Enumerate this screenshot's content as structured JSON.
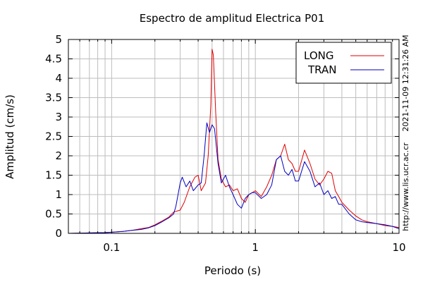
{
  "chart_data": {
    "type": "line",
    "title": "Espectro de amplitud Electrica P01",
    "xlabel": "Periodo (s)",
    "ylabel": "Amplitud (cm/s)",
    "x_scale": "log",
    "xlim": [
      0.05,
      10
    ],
    "ylim": [
      0,
      5
    ],
    "grid": true,
    "legend_position": "top-right",
    "x_tick_labels": [
      {
        "value": 0.1,
        "label": "0.1"
      },
      {
        "value": 1,
        "label": "1"
      },
      {
        "value": 10,
        "label": "10"
      }
    ],
    "y_ticks": [
      0,
      0.5,
      1,
      1.5,
      2,
      2.5,
      3,
      3.5,
      4,
      4.5,
      5
    ],
    "y_tick_labels": [
      "0",
      "0.5",
      "1",
      "1.5",
      "2",
      "2.5",
      "3",
      "3.5",
      "4",
      "4.5",
      "5"
    ],
    "timestamp": "2021-11-09 12:31:26 AM",
    "source_url": "http://www.lis.ucr.ac.cr",
    "series": [
      {
        "name": "LONG",
        "color": "#e00000",
        "x": [
          0.05,
          0.07,
          0.09,
          0.1,
          0.12,
          0.14,
          0.16,
          0.18,
          0.2,
          0.22,
          0.25,
          0.27,
          0.3,
          0.32,
          0.35,
          0.38,
          0.4,
          0.42,
          0.45,
          0.47,
          0.49,
          0.5,
          0.51,
          0.53,
          0.55,
          0.58,
          0.62,
          0.66,
          0.7,
          0.75,
          0.8,
          0.85,
          0.9,
          0.95,
          1.0,
          1.1,
          1.2,
          1.3,
          1.4,
          1.5,
          1.6,
          1.7,
          1.8,
          1.9,
          2.0,
          2.2,
          2.4,
          2.6,
          2.8,
          3.0,
          3.2,
          3.4,
          3.6,
          3.8,
          4.0,
          4.5,
          5.0,
          5.5,
          6.0,
          7.0,
          8.0,
          9.0,
          10.0
        ],
        "values": [
          0.0,
          0.01,
          0.02,
          0.03,
          0.05,
          0.08,
          0.12,
          0.15,
          0.22,
          0.3,
          0.42,
          0.55,
          0.6,
          0.8,
          1.2,
          1.45,
          1.5,
          1.1,
          1.3,
          2.0,
          3.3,
          4.75,
          4.6,
          3.1,
          1.9,
          1.4,
          1.2,
          1.25,
          1.1,
          1.15,
          0.9,
          0.8,
          1.0,
          1.05,
          1.1,
          0.95,
          1.2,
          1.5,
          1.9,
          2.0,
          2.3,
          1.9,
          1.8,
          1.6,
          1.6,
          2.15,
          1.8,
          1.4,
          1.25,
          1.4,
          1.6,
          1.55,
          1.1,
          0.95,
          0.8,
          0.6,
          0.45,
          0.35,
          0.3,
          0.25,
          0.2,
          0.18,
          0.15
        ]
      },
      {
        "name": "TRAN",
        "color": "#0000c0",
        "x": [
          0.05,
          0.07,
          0.09,
          0.1,
          0.12,
          0.14,
          0.16,
          0.18,
          0.2,
          0.22,
          0.25,
          0.27,
          0.28,
          0.3,
          0.31,
          0.33,
          0.35,
          0.37,
          0.4,
          0.42,
          0.44,
          0.46,
          0.48,
          0.5,
          0.52,
          0.55,
          0.58,
          0.62,
          0.66,
          0.7,
          0.75,
          0.8,
          0.85,
          0.9,
          0.95,
          1.0,
          1.1,
          1.2,
          1.3,
          1.4,
          1.5,
          1.6,
          1.7,
          1.8,
          1.9,
          2.0,
          2.2,
          2.4,
          2.6,
          2.8,
          3.0,
          3.2,
          3.4,
          3.6,
          3.8,
          4.0,
          4.5,
          5.0,
          5.5,
          6.0,
          7.0,
          8.0,
          9.0,
          10.0
        ],
        "values": [
          0.0,
          0.01,
          0.02,
          0.03,
          0.05,
          0.08,
          0.1,
          0.14,
          0.2,
          0.28,
          0.4,
          0.5,
          0.7,
          1.3,
          1.45,
          1.2,
          1.35,
          1.1,
          1.25,
          1.3,
          2.0,
          2.85,
          2.6,
          2.8,
          2.7,
          1.8,
          1.3,
          1.5,
          1.2,
          1.0,
          0.75,
          0.65,
          0.9,
          1.0,
          1.05,
          1.05,
          0.9,
          1.0,
          1.25,
          1.9,
          2.0,
          1.6,
          1.5,
          1.65,
          1.35,
          1.35,
          1.85,
          1.6,
          1.2,
          1.3,
          1.0,
          1.1,
          0.9,
          0.95,
          0.75,
          0.75,
          0.5,
          0.35,
          0.3,
          0.28,
          0.25,
          0.22,
          0.18,
          0.12
        ]
      }
    ]
  }
}
